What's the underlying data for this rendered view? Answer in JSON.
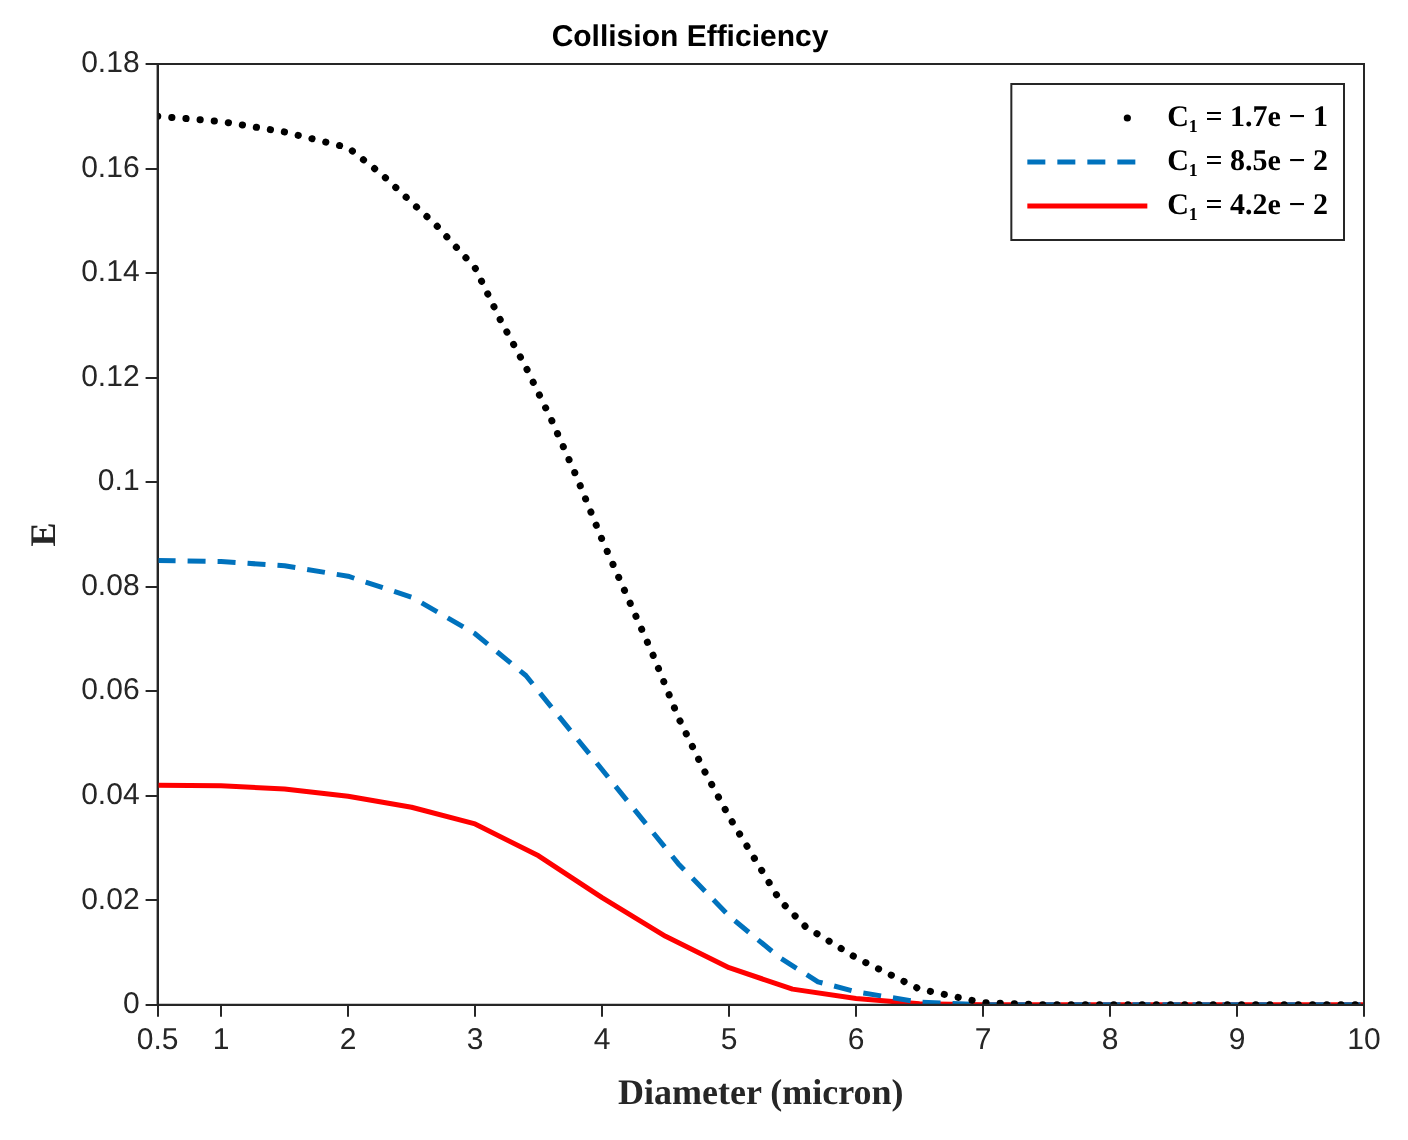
{
  "chart_data": {
    "type": "line",
    "title": "Collision Efficiency",
    "xlabel": "Diameter (micron)",
    "ylabel": "E",
    "xlim": [
      0.5,
      10
    ],
    "xticks": [
      0.5,
      1,
      2,
      3,
      4,
      5,
      6,
      7,
      8,
      9,
      10
    ],
    "ylim": [
      0,
      0.18
    ],
    "yticks": [
      0,
      0.02,
      0.04,
      0.06,
      0.08,
      0.1,
      0.12,
      0.14,
      0.16,
      0.18
    ],
    "grid": false,
    "legend": "top right",
    "marker": "none",
    "series": [
      {
        "name": "C₁ = 1.7e − 1",
        "color": "#000000",
        "line_style": "dotted",
        "x": [
          0.5,
          1,
          1.5,
          2,
          2.26,
          2.7,
          3,
          3.2,
          3.4,
          3.6,
          3.8,
          4,
          4.2,
          4.4,
          4.6,
          4.8,
          5,
          5.2,
          5.4,
          5.6,
          5.8,
          6,
          6.5,
          7,
          7.5,
          8,
          9,
          10
        ],
        "values": [
          0.17,
          0.169,
          0.167,
          0.164,
          0.159,
          0.149,
          0.141,
          0.131,
          0.122,
          0.112,
          0.101,
          0.089,
          0.078,
          0.067,
          0.055,
          0.045,
          0.036,
          0.028,
          0.02,
          0.015,
          0.012,
          0.009,
          0.003,
          0.0004,
          0,
          0,
          0,
          0
        ]
      },
      {
        "name": "C₁ = 8.5e − 2",
        "color": "#0072bd",
        "line_style": "dashed",
        "x": [
          0.5,
          1,
          1.5,
          2,
          2.5,
          3,
          3.4,
          3.8,
          4.2,
          4.6,
          5,
          5.4,
          5.7,
          6,
          6.5,
          7,
          8,
          9,
          10
        ],
        "values": [
          0.085,
          0.0848,
          0.084,
          0.082,
          0.078,
          0.071,
          0.063,
          0.051,
          0.039,
          0.027,
          0.017,
          0.009,
          0.0044,
          0.0025,
          0.0005,
          0,
          0,
          0,
          0
        ]
      },
      {
        "name": "C₁ = 4.2e − 2",
        "color": "#ff0000",
        "line_style": "solid",
        "x": [
          0.5,
          1,
          1.5,
          2,
          2.5,
          3,
          3.5,
          4,
          4.5,
          5,
          5.5,
          6,
          6.5,
          7,
          8,
          9,
          10
        ],
        "values": [
          0.042,
          0.0419,
          0.0413,
          0.0399,
          0.0378,
          0.0346,
          0.0285,
          0.0205,
          0.0131,
          0.0071,
          0.003,
          0.0012,
          0.0002,
          0,
          0,
          0,
          0
        ]
      }
    ]
  }
}
